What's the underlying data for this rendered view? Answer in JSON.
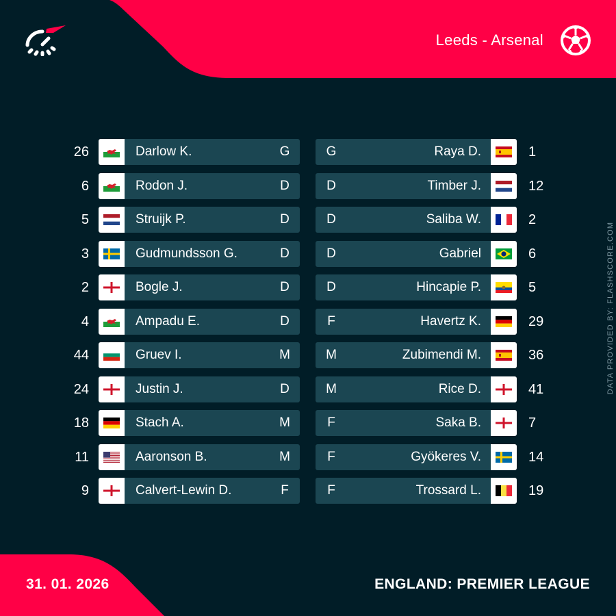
{
  "match": {
    "title": "Leeds - Arsenal"
  },
  "footer": {
    "date": "31. 01. 2026",
    "competition": "ENGLAND: PREMIER LEAGUE"
  },
  "credit": "DATA PROVIDED BY: FLASHSCORE.COM",
  "colors": {
    "background": "#011d27",
    "accent": "#ff0046",
    "bar": "#1b4652",
    "flag_box": "#ffffff"
  },
  "icons": {
    "logo": "flashscore-logo",
    "ball": "football-icon"
  },
  "home": {
    "team": "Leeds",
    "players": [
      {
        "number": "26",
        "name": "Darlow K.",
        "position": "G",
        "flag": "wales"
      },
      {
        "number": "6",
        "name": "Rodon J.",
        "position": "D",
        "flag": "wales"
      },
      {
        "number": "5",
        "name": "Struijk P.",
        "position": "D",
        "flag": "netherlands"
      },
      {
        "number": "3",
        "name": "Gudmundsson G.",
        "position": "D",
        "flag": "sweden"
      },
      {
        "number": "2",
        "name": "Bogle J.",
        "position": "D",
        "flag": "england"
      },
      {
        "number": "4",
        "name": "Ampadu E.",
        "position": "D",
        "flag": "wales"
      },
      {
        "number": "44",
        "name": "Gruev I.",
        "position": "M",
        "flag": "bulgaria"
      },
      {
        "number": "24",
        "name": "Justin J.",
        "position": "D",
        "flag": "england"
      },
      {
        "number": "18",
        "name": "Stach A.",
        "position": "M",
        "flag": "germany"
      },
      {
        "number": "11",
        "name": "Aaronson B.",
        "position": "M",
        "flag": "usa"
      },
      {
        "number": "9",
        "name": "Calvert-Lewin D.",
        "position": "F",
        "flag": "england"
      }
    ]
  },
  "away": {
    "team": "Arsenal",
    "players": [
      {
        "number": "1",
        "name": "Raya D.",
        "position": "G",
        "flag": "spain"
      },
      {
        "number": "12",
        "name": "Timber J.",
        "position": "D",
        "flag": "netherlands"
      },
      {
        "number": "2",
        "name": "Saliba W.",
        "position": "D",
        "flag": "france"
      },
      {
        "number": "6",
        "name": "Gabriel",
        "position": "D",
        "flag": "brazil"
      },
      {
        "number": "5",
        "name": "Hincapie P.",
        "position": "D",
        "flag": "ecuador"
      },
      {
        "number": "29",
        "name": "Havertz K.",
        "position": "F",
        "flag": "germany"
      },
      {
        "number": "36",
        "name": "Zubimendi M.",
        "position": "M",
        "flag": "spain"
      },
      {
        "number": "41",
        "name": "Rice D.",
        "position": "M",
        "flag": "england"
      },
      {
        "number": "7",
        "name": "Saka B.",
        "position": "F",
        "flag": "england"
      },
      {
        "number": "14",
        "name": "Gyökeres V.",
        "position": "F",
        "flag": "sweden"
      },
      {
        "number": "19",
        "name": "Trossard L.",
        "position": "F",
        "flag": "belgium"
      }
    ]
  }
}
